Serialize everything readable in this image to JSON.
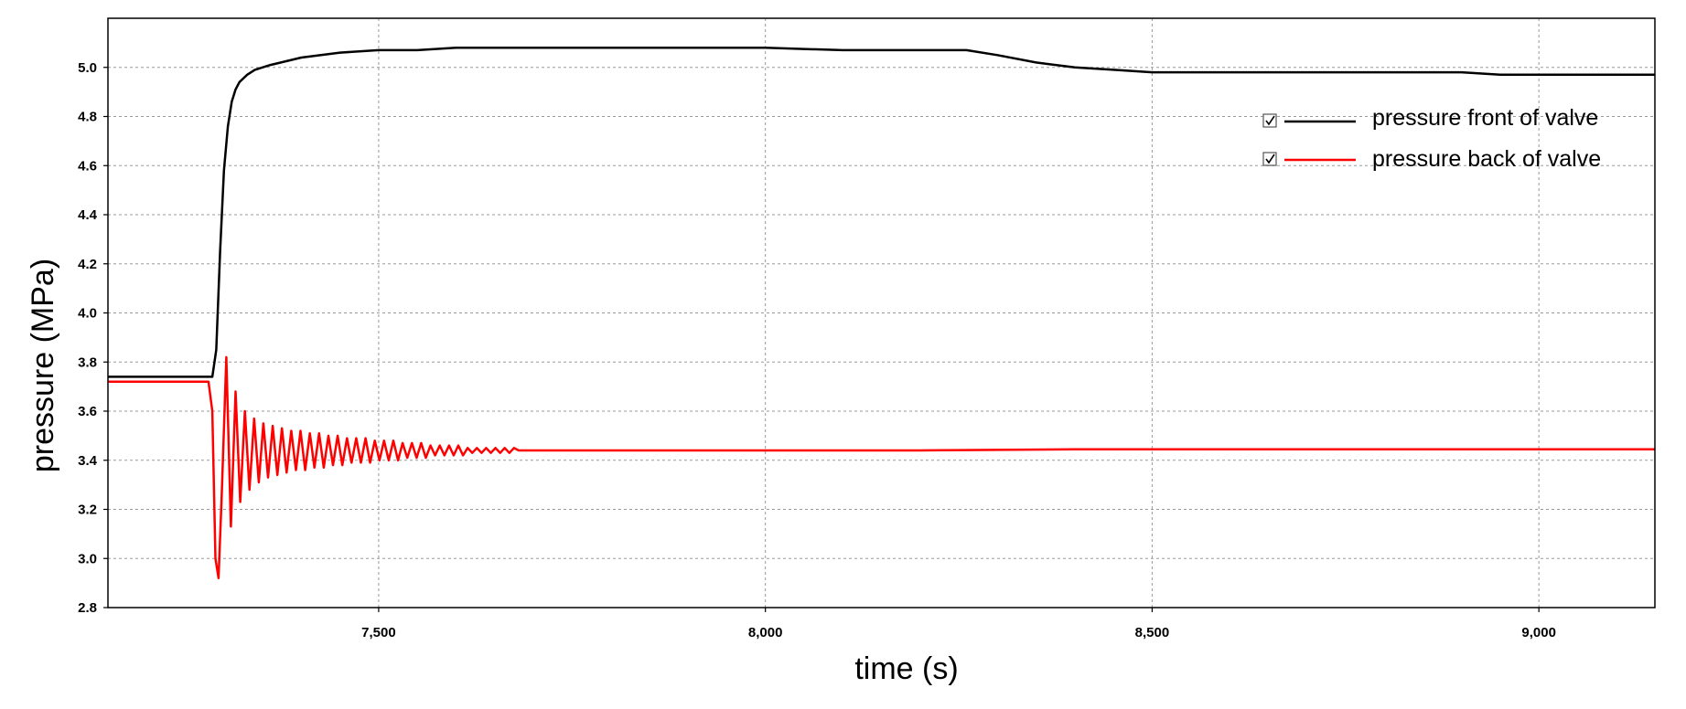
{
  "chart_data": {
    "type": "line",
    "title": "",
    "xlabel": "time (s)",
    "ylabel": "pressure (MPa)",
    "xlim": [
      7150,
      9150
    ],
    "ylim": [
      2.8,
      5.2
    ],
    "x_ticks": [
      7500,
      8000,
      8500,
      9000
    ],
    "x_tick_labels": [
      "7,500",
      "8,000",
      "8,500",
      "9,000"
    ],
    "y_ticks": [
      2.8,
      3.0,
      3.2,
      3.4,
      3.6,
      3.8,
      4.0,
      4.2,
      4.4,
      4.6,
      4.8,
      5.0
    ],
    "y_tick_labels": [
      "2.8",
      "3.0",
      "3.2",
      "3.4",
      "3.6",
      "3.8",
      "4.0",
      "4.2",
      "4.4",
      "4.6",
      "4.8",
      "5.0"
    ],
    "grid": true,
    "legend_position": "top-right",
    "series": [
      {
        "name": "pressure front of valve",
        "color": "#000000",
        "legend_checked": true,
        "x": [
          7150,
          7285,
          7290,
          7295,
          7300,
          7305,
          7310,
          7315,
          7320,
          7330,
          7340,
          7360,
          7400,
          7450,
          7500,
          7550,
          7600,
          7700,
          7800,
          7900,
          8000,
          8100,
          8150,
          8200,
          8260,
          8300,
          8350,
          8400,
          8450,
          8500,
          8600,
          8700,
          8800,
          8900,
          8950,
          9000,
          9150
        ],
        "y": [
          3.74,
          3.74,
          3.85,
          4.25,
          4.58,
          4.76,
          4.86,
          4.91,
          4.94,
          4.97,
          4.99,
          5.01,
          5.04,
          5.06,
          5.07,
          5.07,
          5.08,
          5.08,
          5.08,
          5.08,
          5.08,
          5.07,
          5.07,
          5.07,
          5.07,
          5.05,
          5.02,
          5.0,
          4.99,
          4.98,
          4.98,
          4.98,
          4.98,
          4.98,
          4.97,
          4.97,
          4.97
        ]
      },
      {
        "name": "pressure back of valve",
        "color": "#ff0000",
        "legend_checked": true,
        "x": [
          7150,
          7280,
          7285,
          7289,
          7293,
          7297,
          7303,
          7309,
          7315,
          7321,
          7327,
          7333,
          7339,
          7345,
          7351,
          7357,
          7363,
          7369,
          7375,
          7381,
          7387,
          7393,
          7399,
          7405,
          7411,
          7417,
          7423,
          7429,
          7435,
          7441,
          7447,
          7453,
          7459,
          7465,
          7471,
          7477,
          7483,
          7489,
          7495,
          7501,
          7507,
          7513,
          7519,
          7525,
          7531,
          7537,
          7543,
          7549,
          7555,
          7561,
          7567,
          7573,
          7579,
          7585,
          7591,
          7597,
          7603,
          7609,
          7615,
          7621,
          7627,
          7633,
          7639,
          7645,
          7651,
          7657,
          7663,
          7669,
          7675,
          7681,
          7687,
          7693,
          7699,
          7705,
          7711,
          7717,
          7723,
          7729,
          7735,
          7741,
          7747,
          7753,
          7759,
          7765,
          7771,
          7777,
          7783,
          7789,
          7795,
          7801,
          7820,
          8000,
          8200,
          8400,
          8600,
          8800,
          9000,
          9150
        ],
        "y": [
          3.72,
          3.72,
          3.6,
          3.0,
          2.92,
          3.25,
          3.82,
          3.13,
          3.68,
          3.23,
          3.6,
          3.28,
          3.57,
          3.31,
          3.55,
          3.33,
          3.54,
          3.34,
          3.53,
          3.35,
          3.52,
          3.36,
          3.52,
          3.36,
          3.51,
          3.37,
          3.51,
          3.37,
          3.5,
          3.38,
          3.5,
          3.38,
          3.49,
          3.39,
          3.49,
          3.39,
          3.49,
          3.39,
          3.48,
          3.4,
          3.48,
          3.4,
          3.48,
          3.4,
          3.47,
          3.41,
          3.47,
          3.41,
          3.47,
          3.41,
          3.46,
          3.42,
          3.46,
          3.42,
          3.46,
          3.42,
          3.46,
          3.42,
          3.45,
          3.43,
          3.45,
          3.43,
          3.45,
          3.43,
          3.45,
          3.43,
          3.45,
          3.43,
          3.45,
          3.44,
          3.44,
          3.44,
          3.44,
          3.44,
          3.44,
          3.44,
          3.44,
          3.44,
          3.44,
          3.44,
          3.44,
          3.44,
          3.44,
          3.44,
          3.44,
          3.44,
          3.44,
          3.44,
          3.44,
          3.44,
          3.44,
          3.44,
          3.44,
          3.445,
          3.445,
          3.445,
          3.445,
          3.445
        ]
      }
    ]
  }
}
